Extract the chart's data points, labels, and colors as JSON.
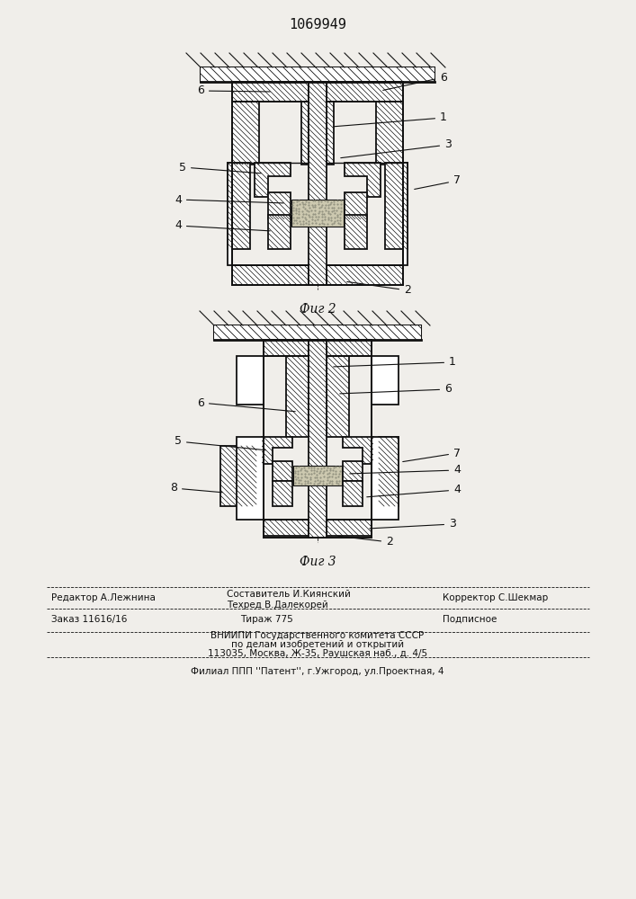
{
  "patent_number": "1069949",
  "fig2_label": "Фиг 2",
  "fig3_label": "Фиг 3",
  "editor_line": "Редактор А.Лежнина",
  "composer_line1": "Составитель И.Киянский",
  "composer_line2": "Техред В.Далекорей",
  "corrector_line": "Корректор С.Шекмар",
  "order_line": "Заказ 11616/16",
  "tirazh_line": "Тираж 775",
  "podpisnoe_line": "Подписное",
  "vniip_line": "ВНИИПИ Государственного комитета СССР",
  "po_delam_line": "по делам изобретений и открытий",
  "address_line": "113035, Москва, Ж-35, Раушская наб., д. 4/5",
  "filial_line": "Филиал ППП ''Патент'', г.Ужгород, ул.Проектная, 4",
  "bg_color": "#f0eeea",
  "line_color": "#111111"
}
